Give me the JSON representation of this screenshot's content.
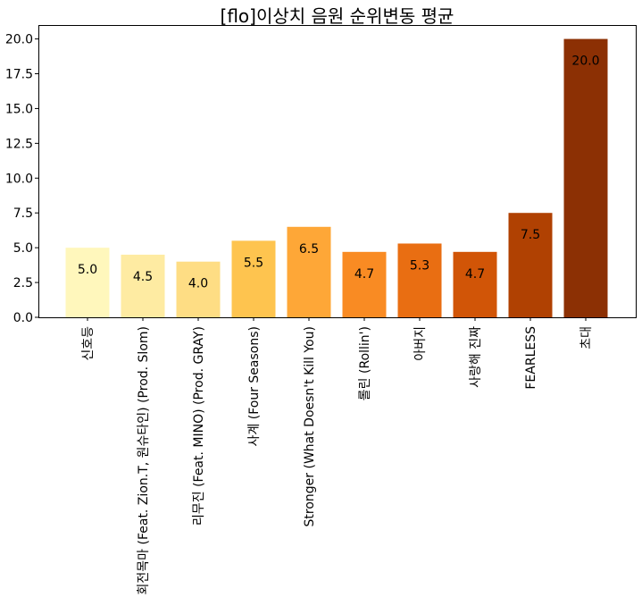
{
  "chart_data": {
    "type": "bar",
    "title": "[flo]이상치 음원 순위변동 평균",
    "xlabel": "",
    "ylabel": "",
    "categories": [
      "신호등",
      "회전목마 (Feat. Zion.T, 원슈타인) (Prod. Slom)",
      "리무진 (Feat. MINO) (Prod. GRAY)",
      "사계 (Four Seasons)",
      "Stronger (What Doesn't Kill You)",
      "롤린 (Rollin')",
      "아버지",
      "사랑해 진짜",
      "FEARLESS",
      "초대"
    ],
    "values": [
      5.0,
      4.5,
      4.0,
      5.5,
      6.5,
      4.7,
      5.3,
      4.7,
      7.5,
      20.0
    ],
    "value_labels": [
      "5.0",
      "4.5",
      "4.0",
      "5.5",
      "6.5",
      "4.7",
      "5.3",
      "4.7",
      "7.5",
      "20.0"
    ],
    "ylim": [
      0,
      21
    ],
    "yticks": [
      0.0,
      2.5,
      5.0,
      7.5,
      10.0,
      12.5,
      15.0,
      17.5,
      20.0
    ],
    "ytick_labels": [
      "0.0",
      "2.5",
      "5.0",
      "7.5",
      "10.0",
      "12.5",
      "15.0",
      "17.5",
      "20.0"
    ],
    "colors": [
      "#fff7bc",
      "#feeba2",
      "#fedd84",
      "#fec44f",
      "#fea737",
      "#f98b23",
      "#e96e12",
      "#d15507",
      "#b04102",
      "#8c3004"
    ],
    "grid": false,
    "legend": "none"
  }
}
